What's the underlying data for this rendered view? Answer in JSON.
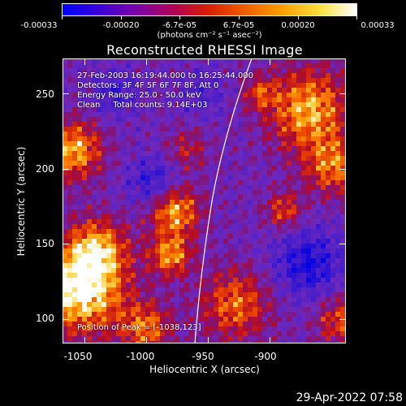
{
  "colorbar": {
    "tick_labels": [
      "-0.00033",
      "-0.00020",
      "-6.7e-05",
      "6.7e-05",
      "0.00020",
      "0.00033"
    ],
    "units": "(photons cm⁻² s⁻¹ asec⁻²)",
    "colors": [
      "#0000ff",
      "#3a00d8",
      "#7a00a8",
      "#b00058",
      "#d82000",
      "#f06000",
      "#ffa000",
      "#ffe040",
      "#ffffff"
    ]
  },
  "title": "Reconstructed RHESSI Image",
  "info": {
    "time_range": "27-Feb-2003 16:19:44.000 to 16:25:44.000",
    "detectors": "Detectors: 3F 4F 5F 6F 7F 8F, Att 0",
    "energy": "Energy Range: 25.0 - 50.0 keV",
    "clean": "Clean     Total counts: 9.14E+03",
    "peak": "Position of Peak = [-1038,123]"
  },
  "x_axis": {
    "label": "Heliocentric X (arcsec)",
    "ticks": [
      "-1050",
      "-1000",
      "-950",
      "-900"
    ]
  },
  "y_axis": {
    "label": "Heliocentric Y (arcsec)",
    "ticks": [
      "250",
      "200",
      "150",
      "100"
    ]
  },
  "footer": {
    "timestamp": "29-Apr-2022 07:58"
  }
}
